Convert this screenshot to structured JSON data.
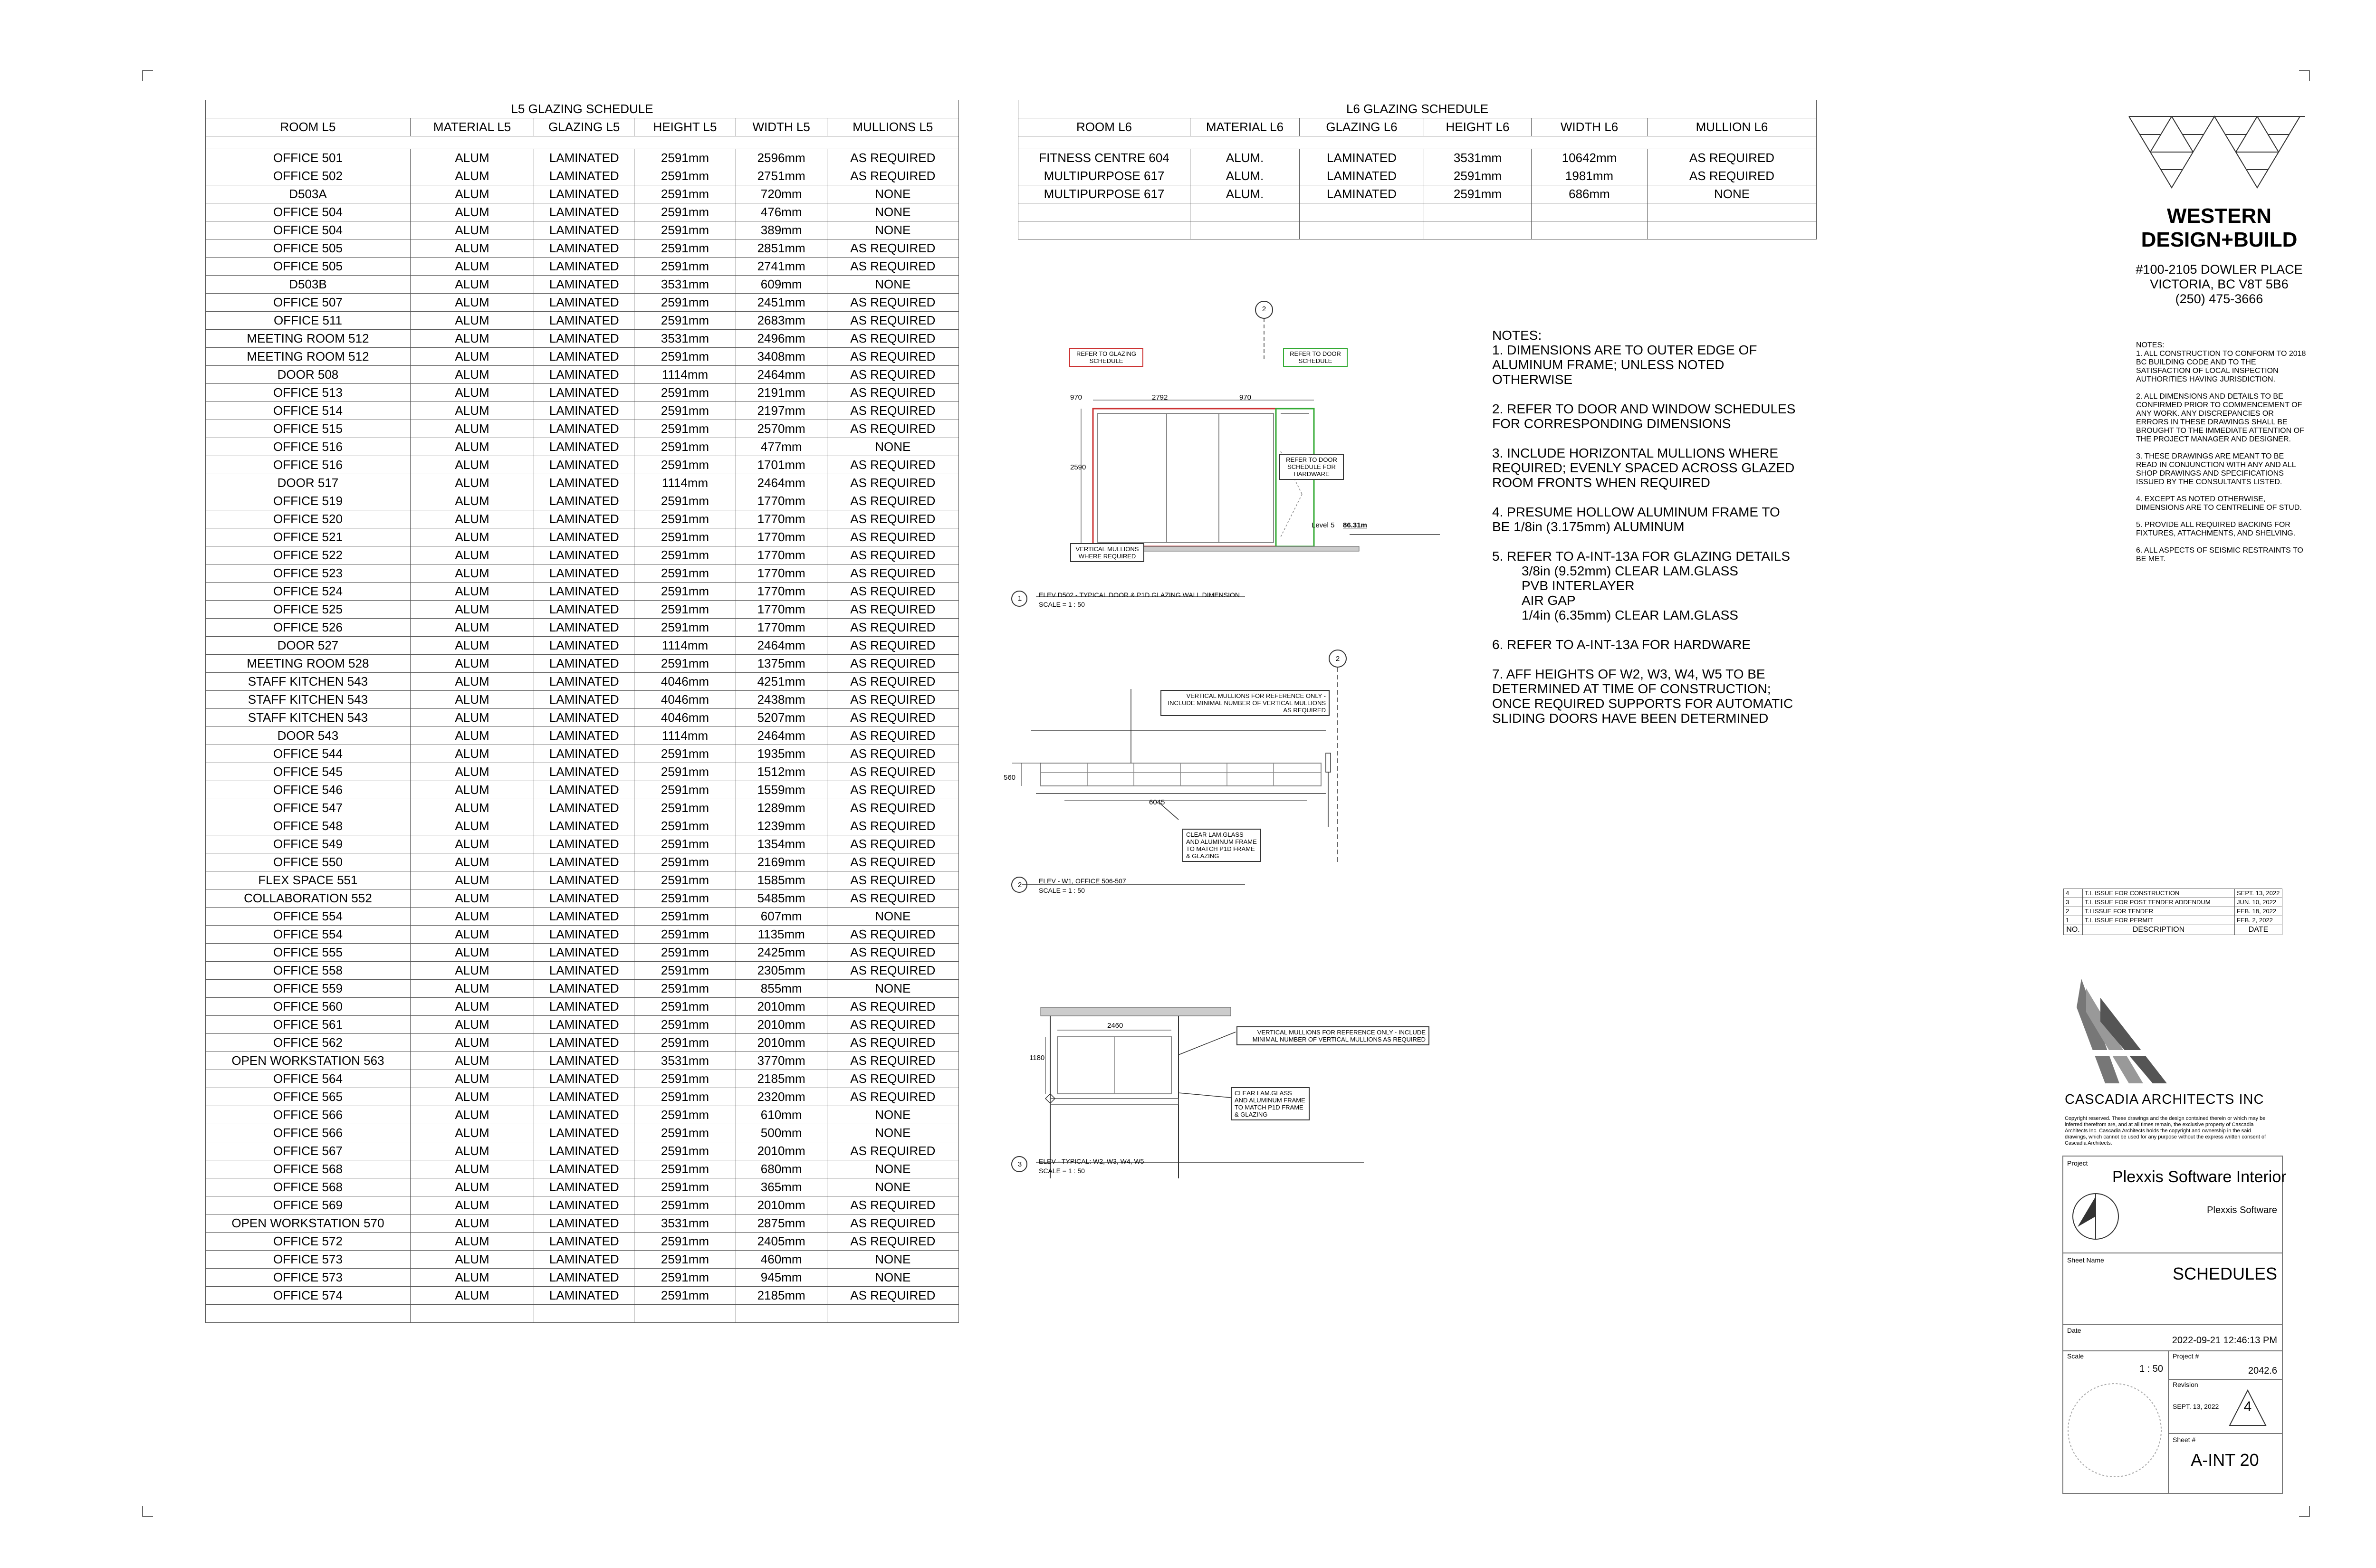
{
  "l5_schedule": {
    "title": "L5 GLAZING SCHEDULE",
    "headers": [
      "ROOM L5",
      "MATERIAL L5",
      "GLAZING L5",
      "HEIGHT L5",
      "WIDTH L5",
      "MULLIONS L5"
    ],
    "rows": [
      [
        "OFFICE 501",
        "ALUM",
        "LAMINATED",
        "2591mm",
        "2596mm",
        "AS REQUIRED"
      ],
      [
        "OFFICE 502",
        "ALUM",
        "LAMINATED",
        "2591mm",
        "2751mm",
        "AS REQUIRED"
      ],
      [
        "D503A",
        "ALUM",
        "LAMINATED",
        "2591mm",
        "720mm",
        "NONE"
      ],
      [
        "OFFICE 504",
        "ALUM",
        "LAMINATED",
        "2591mm",
        "476mm",
        "NONE"
      ],
      [
        "OFFICE 504",
        "ALUM",
        "LAMINATED",
        "2591mm",
        "389mm",
        "NONE"
      ],
      [
        "OFFICE 505",
        "ALUM",
        "LAMINATED",
        "2591mm",
        "2851mm",
        "AS REQUIRED"
      ],
      [
        "OFFICE 505",
        "ALUM",
        "LAMINATED",
        "2591mm",
        "2741mm",
        "AS REQUIRED"
      ],
      [
        "D503B",
        "ALUM",
        "LAMINATED",
        "3531mm",
        "609mm",
        "NONE"
      ],
      [
        "OFFICE 507",
        "ALUM",
        "LAMINATED",
        "2591mm",
        "2451mm",
        "AS REQUIRED"
      ],
      [
        "OFFICE 511",
        "ALUM",
        "LAMINATED",
        "2591mm",
        "2683mm",
        "AS REQUIRED"
      ],
      [
        "MEETING ROOM 512",
        "ALUM",
        "LAMINATED",
        "3531mm",
        "2496mm",
        "AS REQUIRED"
      ],
      [
        "MEETING ROOM 512",
        "ALUM",
        "LAMINATED",
        "2591mm",
        "3408mm",
        "AS REQUIRED"
      ],
      [
        "DOOR 508",
        "ALUM",
        "LAMINATED",
        "1114mm",
        "2464mm",
        "AS REQUIRED"
      ],
      [
        "OFFICE 513",
        "ALUM",
        "LAMINATED",
        "2591mm",
        "2191mm",
        "AS REQUIRED"
      ],
      [
        "OFFICE 514",
        "ALUM",
        "LAMINATED",
        "2591mm",
        "2197mm",
        "AS REQUIRED"
      ],
      [
        "OFFICE 515",
        "ALUM",
        "LAMINATED",
        "2591mm",
        "2570mm",
        "AS REQUIRED"
      ],
      [
        "OFFICE 516",
        "ALUM",
        "LAMINATED",
        "2591mm",
        "477mm",
        "NONE"
      ],
      [
        "OFFICE 516",
        "ALUM",
        "LAMINATED",
        "2591mm",
        "1701mm",
        "AS REQUIRED"
      ],
      [
        "DOOR 517",
        "ALUM",
        "LAMINATED",
        "1114mm",
        "2464mm",
        "AS REQUIRED"
      ],
      [
        "OFFICE 519",
        "ALUM",
        "LAMINATED",
        "2591mm",
        "1770mm",
        "AS REQUIRED"
      ],
      [
        "OFFICE 520",
        "ALUM",
        "LAMINATED",
        "2591mm",
        "1770mm",
        "AS REQUIRED"
      ],
      [
        "OFFICE 521",
        "ALUM",
        "LAMINATED",
        "2591mm",
        "1770mm",
        "AS REQUIRED"
      ],
      [
        "OFFICE 522",
        "ALUM",
        "LAMINATED",
        "2591mm",
        "1770mm",
        "AS REQUIRED"
      ],
      [
        "OFFICE 523",
        "ALUM",
        "LAMINATED",
        "2591mm",
        "1770mm",
        "AS REQUIRED"
      ],
      [
        "OFFICE 524",
        "ALUM",
        "LAMINATED",
        "2591mm",
        "1770mm",
        "AS REQUIRED"
      ],
      [
        "OFFICE 525",
        "ALUM",
        "LAMINATED",
        "2591mm",
        "1770mm",
        "AS REQUIRED"
      ],
      [
        "OFFICE 526",
        "ALUM",
        "LAMINATED",
        "2591mm",
        "1770mm",
        "AS REQUIRED"
      ],
      [
        "DOOR 527",
        "ALUM",
        "LAMINATED",
        "1114mm",
        "2464mm",
        "AS REQUIRED"
      ],
      [
        "MEETING ROOM 528",
        "ALUM",
        "LAMINATED",
        "2591mm",
        "1375mm",
        "AS REQUIRED"
      ],
      [
        "STAFF KITCHEN 543",
        "ALUM",
        "LAMINATED",
        "4046mm",
        "4251mm",
        "AS REQUIRED"
      ],
      [
        "STAFF KITCHEN 543",
        "ALUM",
        "LAMINATED",
        "4046mm",
        "2438mm",
        "AS REQUIRED"
      ],
      [
        "STAFF KITCHEN 543",
        "ALUM",
        "LAMINATED",
        "4046mm",
        "5207mm",
        "AS REQUIRED"
      ],
      [
        "DOOR 543",
        "ALUM",
        "LAMINATED",
        "1114mm",
        "2464mm",
        "AS REQUIRED"
      ],
      [
        "OFFICE 544",
        "ALUM",
        "LAMINATED",
        "2591mm",
        "1935mm",
        "AS REQUIRED"
      ],
      [
        "OFFICE 545",
        "ALUM",
        "LAMINATED",
        "2591mm",
        "1512mm",
        "AS REQUIRED"
      ],
      [
        "OFFICE 546",
        "ALUM",
        "LAMINATED",
        "2591mm",
        "1559mm",
        "AS REQUIRED"
      ],
      [
        "OFFICE 547",
        "ALUM",
        "LAMINATED",
        "2591mm",
        "1289mm",
        "AS REQUIRED"
      ],
      [
        "OFFICE 548",
        "ALUM",
        "LAMINATED",
        "2591mm",
        "1239mm",
        "AS REQUIRED"
      ],
      [
        "OFFICE 549",
        "ALUM",
        "LAMINATED",
        "2591mm",
        "1354mm",
        "AS REQUIRED"
      ],
      [
        "OFFICE 550",
        "ALUM",
        "LAMINATED",
        "2591mm",
        "2169mm",
        "AS REQUIRED"
      ],
      [
        "FLEX SPACE 551",
        "ALUM",
        "LAMINATED",
        "2591mm",
        "1585mm",
        "AS REQUIRED"
      ],
      [
        "COLLABORATION 552",
        "ALUM",
        "LAMINATED",
        "2591mm",
        "5485mm",
        "AS REQUIRED"
      ],
      [
        "OFFICE 554",
        "ALUM",
        "LAMINATED",
        "2591mm",
        "607mm",
        "NONE"
      ],
      [
        "OFFICE 554",
        "ALUM",
        "LAMINATED",
        "2591mm",
        "1135mm",
        "AS REQUIRED"
      ],
      [
        "OFFICE 555",
        "ALUM",
        "LAMINATED",
        "2591mm",
        "2425mm",
        "AS REQUIRED"
      ],
      [
        "OFFICE 558",
        "ALUM",
        "LAMINATED",
        "2591mm",
        "2305mm",
        "AS REQUIRED"
      ],
      [
        "OFFICE 559",
        "ALUM",
        "LAMINATED",
        "2591mm",
        "855mm",
        "NONE"
      ],
      [
        "OFFICE 560",
        "ALUM",
        "LAMINATED",
        "2591mm",
        "2010mm",
        "AS REQUIRED"
      ],
      [
        "OFFICE 561",
        "ALUM",
        "LAMINATED",
        "2591mm",
        "2010mm",
        "AS REQUIRED"
      ],
      [
        "OFFICE 562",
        "ALUM",
        "LAMINATED",
        "2591mm",
        "2010mm",
        "AS REQUIRED"
      ],
      [
        "OPEN WORKSTATION 563",
        "ALUM",
        "LAMINATED",
        "3531mm",
        "3770mm",
        "AS REQUIRED"
      ],
      [
        "OFFICE 564",
        "ALUM",
        "LAMINATED",
        "2591mm",
        "2185mm",
        "AS REQUIRED"
      ],
      [
        "OFFICE 565",
        "ALUM",
        "LAMINATED",
        "2591mm",
        "2320mm",
        "AS REQUIRED"
      ],
      [
        "OFFICE 566",
        "ALUM",
        "LAMINATED",
        "2591mm",
        "610mm",
        "NONE"
      ],
      [
        "OFFICE 566",
        "ALUM",
        "LAMINATED",
        "2591mm",
        "500mm",
        "NONE"
      ],
      [
        "OFFICE 567",
        "ALUM",
        "LAMINATED",
        "2591mm",
        "2010mm",
        "AS REQUIRED"
      ],
      [
        "OFFICE 568",
        "ALUM",
        "LAMINATED",
        "2591mm",
        "680mm",
        "NONE"
      ],
      [
        "OFFICE 568",
        "ALUM",
        "LAMINATED",
        "2591mm",
        "365mm",
        "NONE"
      ],
      [
        "OFFICE 569",
        "ALUM",
        "LAMINATED",
        "2591mm",
        "2010mm",
        "AS REQUIRED"
      ],
      [
        "OPEN WORKSTATION 570",
        "ALUM",
        "LAMINATED",
        "3531mm",
        "2875mm",
        "AS REQUIRED"
      ],
      [
        "OFFICE 572",
        "ALUM",
        "LAMINATED",
        "2591mm",
        "2405mm",
        "AS REQUIRED"
      ],
      [
        "OFFICE 573",
        "ALUM",
        "LAMINATED",
        "2591mm",
        "460mm",
        "NONE"
      ],
      [
        "OFFICE 573",
        "ALUM",
        "LAMINATED",
        "2591mm",
        "945mm",
        "NONE"
      ],
      [
        "OFFICE 574",
        "ALUM",
        "LAMINATED",
        "2591mm",
        "2185mm",
        "AS REQUIRED"
      ]
    ]
  },
  "l6_schedule": {
    "title": "L6 GLAZING SCHEDULE",
    "headers": [
      "ROOM L6",
      "MATERIAL L6",
      "GLAZING L6",
      "HEIGHT L6",
      "WIDTH L6",
      "MULLION L6"
    ],
    "rows": [
      [
        "FITNESS CENTRE 604",
        "ALUM.",
        "LAMINATED",
        "3531mm",
        "10642mm",
        "AS REQUIRED"
      ],
      [
        "MULTIPURPOSE 617",
        "ALUM.",
        "LAMINATED",
        "2591mm",
        "1981mm",
        "AS REQUIRED"
      ],
      [
        "MULTIPURPOSE 617",
        "ALUM.",
        "LAMINATED",
        "2591mm",
        "686mm",
        "NONE"
      ]
    ]
  },
  "notes": {
    "heading": "NOTES:",
    "items": [
      "1. DIMENSIONS ARE TO OUTER EDGE OF ALUMINUM FRAME; UNLESS NOTED OTHERWISE",
      "2. REFER TO DOOR AND WINDOW SCHEDULES FOR CORRESPONDING DIMENSIONS",
      "3. INCLUDE HORIZONTAL MULLIONS WHERE REQUIRED; EVENLY SPACED ACROSS GLAZED ROOM FRONTS WHEN REQUIRED",
      "4. PRESUME HOLLOW ALUMINUM FRAME TO BE 1/8in (3.175mm) ALUMINUM",
      "5. REFER TO A-INT-13A FOR GLAZING DETAILS",
      "6. REFER TO A-INT-13A FOR HARDWARE",
      "7. AFF HEIGHTS OF W2, W3, W4, W5 TO BE DETERMINED AT TIME OF CONSTRUCTION; ONCE REQUIRED SUPPORTS FOR AUTOMATIC SLIDING DOORS HAVE BEEN DETERMINED"
    ],
    "glazing_details": [
      "3/8in (9.52mm) CLEAR LAM.GLASS",
      "PVB INTERLAYER",
      "AIR GAP",
      "1/4in (6.35mm) CLEAR LAM.GLASS"
    ]
  },
  "drawings": {
    "d1": {
      "number": "1",
      "ref": "2",
      "caption": "ELEV D502 - TYPICAL DOOR & P1D GLAZING WALL DIMENSION",
      "scale": "SCALE =   1 : 50",
      "label_glazing": "REFER TO GLAZING SCHEDULE",
      "label_door": "REFER TO DOOR SCHEDULE",
      "label_hardware": "REFER TO DOOR SCHEDULE FOR HARDWARE",
      "label_mullions": "VERTICAL MULLIONS WHERE REQUIRED",
      "level": "Level 5",
      "level_value": "86.31m",
      "dim_top": "2792",
      "dim_door": "970",
      "dim_height": "2590",
      "dim_transom": "970"
    },
    "d2": {
      "number": "2",
      "ref": "2",
      "caption": "ELEV - W1, OFFICE 506-507",
      "scale": "SCALE =   1 : 50",
      "label_mullions": "VERTICAL MULLIONS FOR REFERENCE ONLY - INCLUDE MINIMAL NUMBER OF VERTICAL MULLIONS AS REQUIRED",
      "label_glass": "CLEAR LAM.GLASS AND ALUMINUM FRAME TO MATCH P1D FRAME & GLAZING",
      "dim_width": "6045",
      "dim_height": "560"
    },
    "d3": {
      "number": "3",
      "caption": "ELEV - TYPICAL: W2, W3, W4, W5",
      "scale": "SCALE =   1 : 50",
      "label_mullions": "VERTICAL MULLIONS FOR REFERENCE ONLY - INCLUDE MINIMAL NUMBER OF VERTICAL MULLIONS AS REQUIRED",
      "label_glass": "CLEAR LAM.GLASS AND ALUMINUM FRAME TO MATCH P1D FRAME & GLAZING",
      "dim_width": "2460",
      "dim_height": "1180"
    }
  },
  "firm": {
    "name_line1": "WESTERN",
    "name_line2": "DESIGN+BUILD",
    "address1": "#100-2105 DOWLER PLACE",
    "address2": "VICTORIA, BC V8T 5B6",
    "phone": "(250) 475-3666",
    "notes_heading": "NOTES:",
    "notes": [
      "1. ALL CONSTRUCTION TO CONFORM TO 2018 BC BUILDING CODE AND TO THE SATISFACTION OF LOCAL INSPECTION AUTHORITIES HAVING JURISDICTION.",
      "2. ALL DIMENSIONS AND DETAILS TO BE CONFIRMED PRIOR TO COMMENCEMENT OF ANY WORK. ANY DISCREPANCIES OR ERRORS IN THESE DRAWINGS SHALL BE BROUGHT TO THE IMMEDIATE ATTENTION OF THE PROJECT MANAGER AND DESIGNER.",
      "3. THESE DRAWINGS ARE MEANT TO BE READ IN CONJUNCTION WITH ANY AND ALL SHOP DRAWINGS AND SPECIFICATIONS ISSUED BY THE CONSULTANTS LISTED.",
      "4. EXCEPT AS NOTED OTHERWISE, DIMENSIONS ARE TO CENTRELINE OF STUD.",
      "5. PROVIDE ALL REQUIRED BACKING FOR FIXTURES, ATTACHMENTS, AND SHELVING.",
      "6. ALL ASPECTS OF SEISMIC RESTRAINTS TO BE MET."
    ]
  },
  "revisions": {
    "rows": [
      [
        "4",
        "T.I. ISSUE FOR CONSTRUCTION",
        "SEPT. 13, 2022"
      ],
      [
        "3",
        "T.I. ISSUE FOR POST TENDER ADDENDUM",
        "JUN. 10, 2022"
      ],
      [
        "2",
        "T.I ISSUE FOR TENDER",
        "FEB. 18, 2022"
      ],
      [
        "1",
        "T.I. ISSUE FOR PERMIT",
        "FEB. 2, 2022"
      ]
    ],
    "headers": [
      "NO.",
      "DESCRIPTION",
      "DATE"
    ]
  },
  "architect": {
    "name": "CASCADIA ARCHITECTS INC",
    "copyright": "Copyright reserved. These drawings and the design contained therein or which may be inferred therefrom are, and at all times remain, the exclusive property of Cascadia Architects Inc. Cascadia Architects holds the copyright and ownership in the said drawings, which cannot be used for any purpose without the express written consent of Cascadia Architects."
  },
  "title_block": {
    "project_label": "Project",
    "project": "Plexxis Software Interior",
    "client": "Plexxis Software",
    "sheet_name_label": "Sheet Name",
    "sheet_name": "SCHEDULES",
    "date_label": "Date",
    "date": "2022-09-21 12:46:13 PM",
    "scale_label": "Scale",
    "scale": "1 : 50",
    "project_no_label": "Project #",
    "project_no": "2042.6",
    "revision_label": "Revision",
    "revision_date": "SEPT. 13, 2022",
    "revision_no": "4",
    "sheet_no_label": "Sheet #",
    "sheet_no": "A-INT 20"
  }
}
